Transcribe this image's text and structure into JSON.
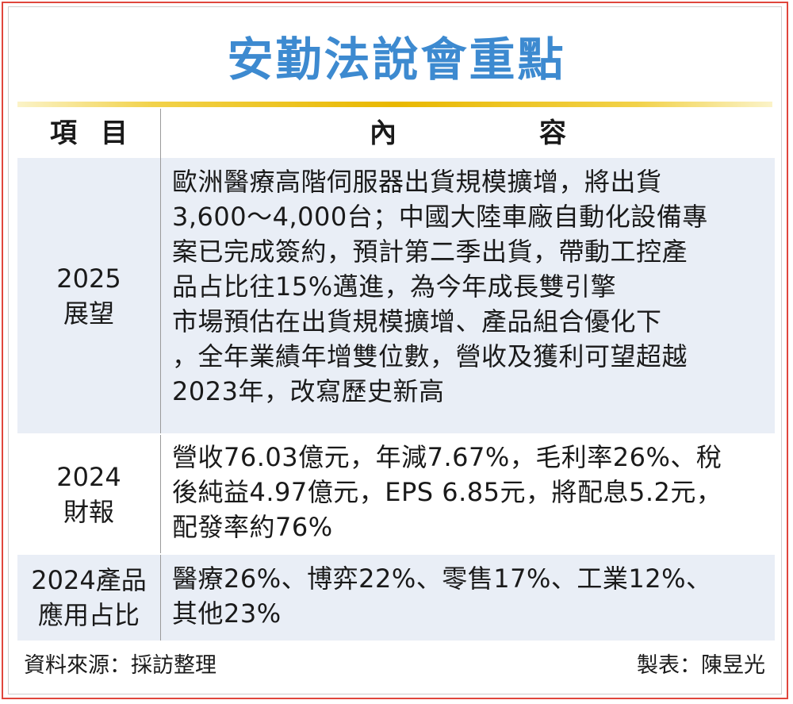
{
  "title": "安勤法說會重點",
  "header": {
    "item": "項目",
    "content": "內容"
  },
  "rows": [
    {
      "item": [
        "2025",
        "展望"
      ],
      "content": [
        "歐洲醫療高階伺服器出貨規模擴增，將出貨",
        "3,600～4,000台；中國大陸車廠自動化設備專",
        "案已完成簽約，預計第二季出貨，帶動工控產",
        "品占比往15%邁進，為今年成長雙引擎",
        "市場預估在出貨規模擴增、產品組合優化下",
        "，全年業績年增雙位數，營收及獲利可望超越",
        "2023年，改寫歷史新高"
      ]
    },
    {
      "item": [
        "2024",
        "財報"
      ],
      "content": [
        "營收76.03億元，年減7.67%，毛利率26%、稅",
        "後純益4.97億元，EPS 6.85元，將配息5.2元，",
        "配發率約76%"
      ]
    },
    {
      "item": [
        "2024產品",
        "應用占比"
      ],
      "content": [
        "醫療26%、博弈22%、零售17%、工業12%、",
        "其他23%"
      ]
    }
  ],
  "footer": {
    "source": "資料來源：採訪整理",
    "maker": "製表：陳昱光"
  },
  "colors": {
    "title": "#3d8ad0",
    "frame": "#e0463c",
    "bar": "#e9b800",
    "shade": "#e9eef6"
  }
}
